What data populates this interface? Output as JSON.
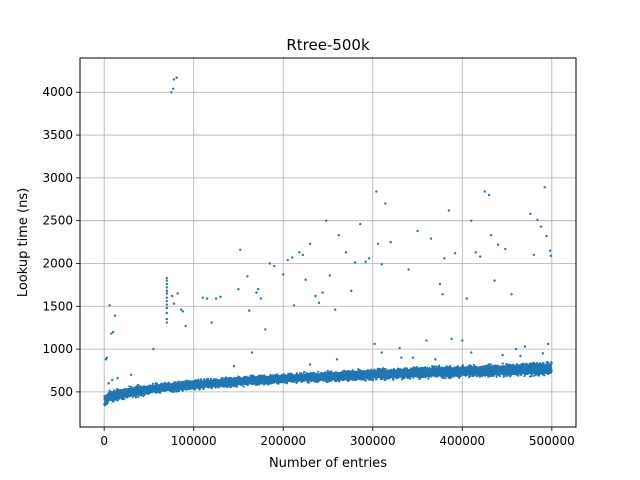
{
  "chart_data": {
    "type": "scatter",
    "title": "Rtree-500k",
    "xlabel": "Number of entries",
    "ylabel": "Lookup time (ns)",
    "xlim": [
      -27000,
      527000
    ],
    "ylim": [
      90,
      4400
    ],
    "xticks": [
      0,
      100000,
      200000,
      300000,
      400000,
      500000
    ],
    "xtick_labels": [
      "0",
      "100000",
      "200000",
      "300000",
      "400000",
      "500000"
    ],
    "yticks": [
      500,
      1000,
      1500,
      2000,
      2500,
      3000,
      3500,
      4000
    ],
    "ytick_labels": [
      "500",
      "1000",
      "1500",
      "2000",
      "2500",
      "3000",
      "3500",
      "4000"
    ],
    "grid": true,
    "marker_color": "#1f77b4",
    "band": [
      {
        "x": 0,
        "low": 290,
        "high": 480
      },
      {
        "x": 5000,
        "low": 360,
        "high": 530
      },
      {
        "x": 20000,
        "low": 400,
        "high": 560
      },
      {
        "x": 50000,
        "low": 460,
        "high": 600
      },
      {
        "x": 100000,
        "low": 520,
        "high": 650
      },
      {
        "x": 200000,
        "low": 590,
        "high": 720
      },
      {
        "x": 300000,
        "low": 630,
        "high": 780
      },
      {
        "x": 400000,
        "low": 660,
        "high": 820
      },
      {
        "x": 500000,
        "low": 680,
        "high": 860
      }
    ],
    "outliers": [
      [
        75000,
        4000
      ],
      [
        77000,
        4040
      ],
      [
        78000,
        4150
      ],
      [
        81000,
        4170
      ],
      [
        2000,
        880
      ],
      [
        3000,
        900
      ],
      [
        6000,
        1510
      ],
      [
        8000,
        1180
      ],
      [
        10000,
        1200
      ],
      [
        12000,
        1390
      ],
      [
        5000,
        600
      ],
      [
        9000,
        640
      ],
      [
        15000,
        660
      ],
      [
        30000,
        700
      ],
      [
        55000,
        1000
      ],
      [
        70000,
        1830
      ],
      [
        70000,
        1800
      ],
      [
        70000,
        1760
      ],
      [
        70000,
        1720
      ],
      [
        70000,
        1680
      ],
      [
        70000,
        1650
      ],
      [
        70000,
        1600
      ],
      [
        70000,
        1560
      ],
      [
        70000,
        1520
      ],
      [
        70000,
        1480
      ],
      [
        70000,
        1420
      ],
      [
        70000,
        1350
      ],
      [
        70000,
        1310
      ],
      [
        76000,
        1620
      ],
      [
        78000,
        1530
      ],
      [
        82000,
        1650
      ],
      [
        86000,
        1460
      ],
      [
        88000,
        1440
      ],
      [
        91000,
        1270
      ],
      [
        110000,
        1600
      ],
      [
        115000,
        1590
      ],
      [
        120000,
        1310
      ],
      [
        125000,
        1590
      ],
      [
        130000,
        1610
      ],
      [
        150000,
        1700
      ],
      [
        152000,
        2160
      ],
      [
        160000,
        1850
      ],
      [
        162000,
        1450
      ],
      [
        165000,
        960
      ],
      [
        170000,
        1660
      ],
      [
        172000,
        1700
      ],
      [
        175000,
        1590
      ],
      [
        180000,
        1230
      ],
      [
        185000,
        2000
      ],
      [
        190000,
        1970
      ],
      [
        200000,
        1870
      ],
      [
        205000,
        2040
      ],
      [
        210000,
        2070
      ],
      [
        212000,
        1510
      ],
      [
        218000,
        2130
      ],
      [
        222000,
        2100
      ],
      [
        225000,
        1810
      ],
      [
        230000,
        2230
      ],
      [
        236000,
        1620
      ],
      [
        240000,
        1540
      ],
      [
        244000,
        1660
      ],
      [
        248000,
        2500
      ],
      [
        252000,
        1860
      ],
      [
        258000,
        1460
      ],
      [
        262000,
        2330
      ],
      [
        270000,
        2130
      ],
      [
        276000,
        1680
      ],
      [
        280000,
        2010
      ],
      [
        286000,
        2460
      ],
      [
        292000,
        2020
      ],
      [
        296000,
        2060
      ],
      [
        302000,
        1060
      ],
      [
        304000,
        2840
      ],
      [
        306000,
        2230
      ],
      [
        310000,
        1990
      ],
      [
        314000,
        2700
      ],
      [
        320000,
        2250
      ],
      [
        332000,
        900
      ],
      [
        340000,
        1930
      ],
      [
        350000,
        2380
      ],
      [
        360000,
        1100
      ],
      [
        365000,
        2290
      ],
      [
        375000,
        1760
      ],
      [
        378000,
        1640
      ],
      [
        380000,
        2060
      ],
      [
        385000,
        2620
      ],
      [
        388000,
        1120
      ],
      [
        392000,
        2120
      ],
      [
        400000,
        1100
      ],
      [
        405000,
        1590
      ],
      [
        410000,
        2500
      ],
      [
        415000,
        2130
      ],
      [
        420000,
        2080
      ],
      [
        425000,
        2840
      ],
      [
        430000,
        2800
      ],
      [
        432000,
        2330
      ],
      [
        436000,
        1800
      ],
      [
        440000,
        2220
      ],
      [
        448000,
        2170
      ],
      [
        455000,
        1640
      ],
      [
        460000,
        1000
      ],
      [
        470000,
        1030
      ],
      [
        476000,
        2580
      ],
      [
        480000,
        2100
      ],
      [
        484000,
        2510
      ],
      [
        488000,
        2430
      ],
      [
        492000,
        2890
      ],
      [
        494000,
        2320
      ],
      [
        496000,
        1060
      ],
      [
        498000,
        2150
      ],
      [
        499000,
        2090
      ],
      [
        145000,
        800
      ],
      [
        230000,
        820
      ],
      [
        260000,
        880
      ],
      [
        310000,
        960
      ],
      [
        330000,
        1010
      ],
      [
        345000,
        900
      ],
      [
        370000,
        880
      ],
      [
        410000,
        960
      ],
      [
        445000,
        930
      ],
      [
        465000,
        920
      ],
      [
        490000,
        950
      ]
    ]
  }
}
